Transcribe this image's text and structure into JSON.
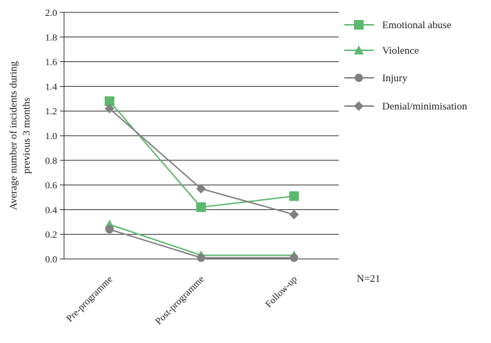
{
  "chart_data": {
    "type": "line",
    "categories": [
      "Pre-programme",
      "Post-programme",
      "Follow-up"
    ],
    "series": [
      {
        "name": "Emotional abuse",
        "values": [
          1.28,
          0.42,
          0.51
        ],
        "color": "#5cb86e",
        "marker": "square"
      },
      {
        "name": "Violence",
        "values": [
          0.28,
          0.03,
          0.03
        ],
        "color": "#5cb86e",
        "marker": "triangle"
      },
      {
        "name": "Injury",
        "values": [
          0.24,
          0.01,
          0.01
        ],
        "color": "#808080",
        "marker": "circle"
      },
      {
        "name": "Denial/minimisation",
        "values": [
          1.22,
          0.57,
          0.36
        ],
        "color": "#808080",
        "marker": "diamond"
      }
    ],
    "ylabel_line1": "Average number of incidents during",
    "ylabel_line2": "previous 3 months",
    "ylim": [
      0,
      2.0
    ],
    "yticks": [
      "0.0",
      "0.2",
      "0.4",
      "0.6",
      "0.8",
      "1.0",
      "1.2",
      "1.4",
      "1.6",
      "1.8",
      "2.0"
    ],
    "grid": true,
    "legend_position": "right",
    "annotation": "N=21"
  }
}
